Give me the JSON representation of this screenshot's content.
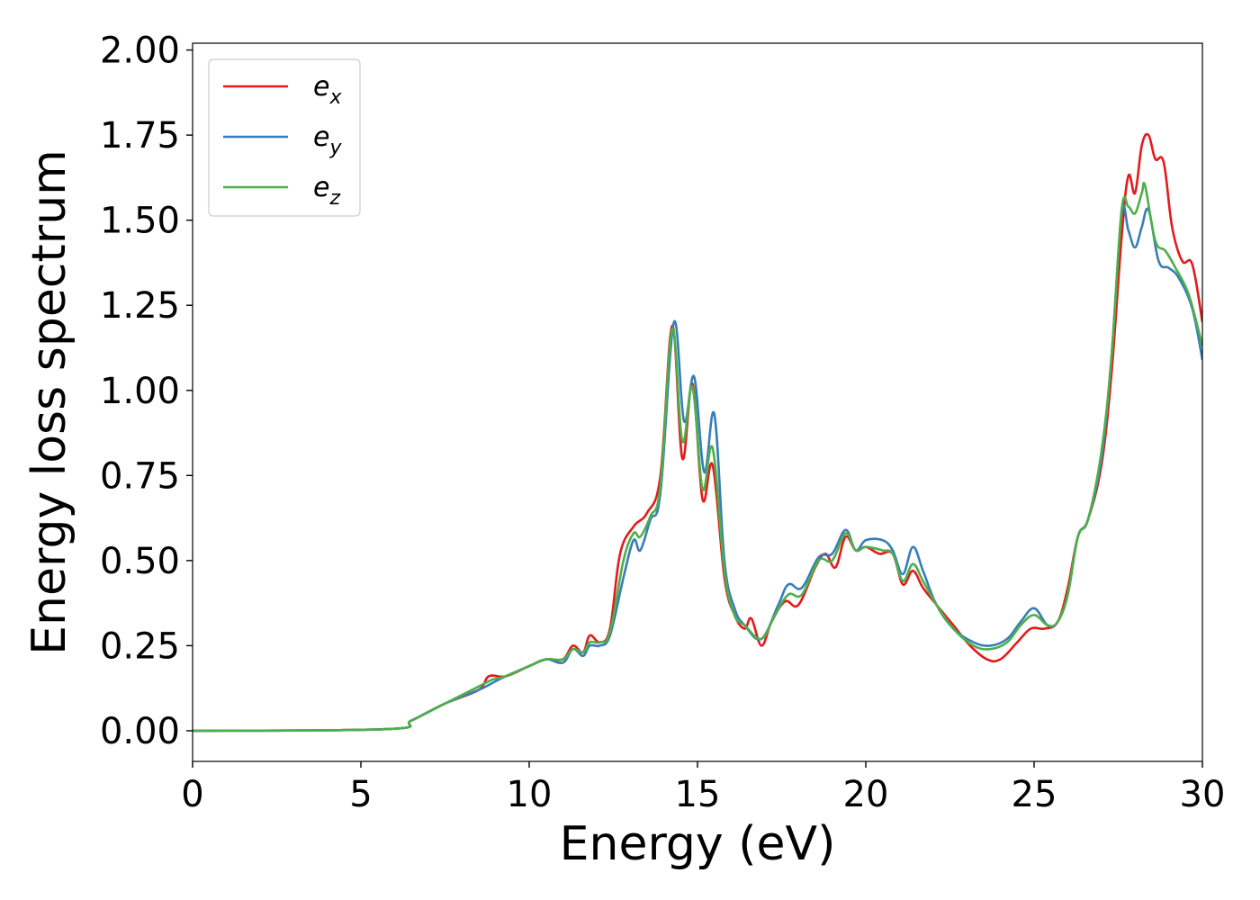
{
  "chart_data": {
    "type": "line",
    "xlabel": "Energy (eV)",
    "ylabel": "Energy loss spectrum",
    "xlim": [
      0,
      30
    ],
    "ylim": [
      -0.09,
      2.02
    ],
    "xticks": [
      0,
      5,
      10,
      15,
      20,
      25,
      30
    ],
    "xtick_labels": [
      "0",
      "5",
      "10",
      "15",
      "20",
      "25",
      "30"
    ],
    "yticks": [
      0,
      0.25,
      0.5,
      0.75,
      1.0,
      1.25,
      1.5,
      1.75,
      2.0
    ],
    "ytick_labels": [
      "0.00",
      "0.25",
      "0.50",
      "0.75",
      "1.00",
      "1.25",
      "1.50",
      "1.75",
      "2.00"
    ],
    "grid": false,
    "legend_position": "top-left",
    "series": [
      {
        "name_base": "e",
        "name_sub": "x",
        "color": "#e41a1c",
        "points": [
          [
            0,
            0
          ],
          [
            5.8,
            0.005
          ],
          [
            6.5,
            0.03
          ],
          [
            7.5,
            0.08
          ],
          [
            8.5,
            0.12
          ],
          [
            8.8,
            0.16
          ],
          [
            9.3,
            0.16
          ],
          [
            10,
            0.19
          ],
          [
            10.5,
            0.21
          ],
          [
            11,
            0.21
          ],
          [
            11.3,
            0.25
          ],
          [
            11.6,
            0.23
          ],
          [
            11.8,
            0.28
          ],
          [
            12.1,
            0.26
          ],
          [
            12.4,
            0.3
          ],
          [
            12.7,
            0.52
          ],
          [
            13.1,
            0.6
          ],
          [
            13.5,
            0.64
          ],
          [
            13.9,
            0.75
          ],
          [
            14.25,
            1.19
          ],
          [
            14.55,
            0.8
          ],
          [
            14.85,
            1.02
          ],
          [
            15.15,
            0.68
          ],
          [
            15.45,
            0.78
          ],
          [
            15.8,
            0.45
          ],
          [
            16.1,
            0.34
          ],
          [
            16.4,
            0.3
          ],
          [
            16.6,
            0.33
          ],
          [
            16.9,
            0.25
          ],
          [
            17.2,
            0.32
          ],
          [
            17.6,
            0.38
          ],
          [
            18.0,
            0.37
          ],
          [
            18.5,
            0.48
          ],
          [
            18.8,
            0.52
          ],
          [
            19.1,
            0.48
          ],
          [
            19.4,
            0.57
          ],
          [
            19.7,
            0.53
          ],
          [
            20.0,
            0.54
          ],
          [
            20.4,
            0.52
          ],
          [
            20.8,
            0.52
          ],
          [
            21.1,
            0.43
          ],
          [
            21.4,
            0.47
          ],
          [
            21.7,
            0.42
          ],
          [
            22.1,
            0.37
          ],
          [
            22.6,
            0.31
          ],
          [
            23.1,
            0.25
          ],
          [
            23.6,
            0.21
          ],
          [
            24.0,
            0.21
          ],
          [
            24.5,
            0.26
          ],
          [
            24.9,
            0.3
          ],
          [
            25.3,
            0.3
          ],
          [
            25.7,
            0.32
          ],
          [
            26.0,
            0.42
          ],
          [
            26.3,
            0.57
          ],
          [
            26.6,
            0.62
          ],
          [
            27.0,
            0.78
          ],
          [
            27.3,
            1.05
          ],
          [
            27.6,
            1.45
          ],
          [
            27.8,
            1.63
          ],
          [
            28.0,
            1.58
          ],
          [
            28.2,
            1.72
          ],
          [
            28.4,
            1.75
          ],
          [
            28.6,
            1.68
          ],
          [
            28.85,
            1.67
          ],
          [
            29.1,
            1.48
          ],
          [
            29.4,
            1.38
          ],
          [
            29.7,
            1.37
          ],
          [
            30.0,
            1.2
          ]
        ]
      },
      {
        "name_base": "e",
        "name_sub": "y",
        "color": "#377eb8",
        "points": [
          [
            0,
            0
          ],
          [
            5.8,
            0.005
          ],
          [
            6.5,
            0.03
          ],
          [
            7.5,
            0.08
          ],
          [
            8.5,
            0.12
          ],
          [
            8.9,
            0.14
          ],
          [
            9.3,
            0.16
          ],
          [
            10,
            0.19
          ],
          [
            10.5,
            0.21
          ],
          [
            11,
            0.2
          ],
          [
            11.3,
            0.24
          ],
          [
            11.6,
            0.22
          ],
          [
            11.8,
            0.25
          ],
          [
            12.1,
            0.25
          ],
          [
            12.4,
            0.28
          ],
          [
            12.8,
            0.45
          ],
          [
            13.1,
            0.56
          ],
          [
            13.3,
            0.53
          ],
          [
            13.6,
            0.62
          ],
          [
            13.9,
            0.7
          ],
          [
            14.3,
            1.2
          ],
          [
            14.6,
            0.91
          ],
          [
            14.9,
            1.04
          ],
          [
            15.2,
            0.76
          ],
          [
            15.5,
            0.93
          ],
          [
            15.8,
            0.5
          ],
          [
            16.1,
            0.36
          ],
          [
            16.4,
            0.31
          ],
          [
            16.9,
            0.27
          ],
          [
            17.4,
            0.37
          ],
          [
            17.7,
            0.43
          ],
          [
            18.1,
            0.42
          ],
          [
            18.6,
            0.51
          ],
          [
            19.0,
            0.52
          ],
          [
            19.4,
            0.59
          ],
          [
            19.7,
            0.53
          ],
          [
            20.0,
            0.56
          ],
          [
            20.5,
            0.56
          ],
          [
            20.8,
            0.53
          ],
          [
            21.1,
            0.46
          ],
          [
            21.4,
            0.54
          ],
          [
            21.7,
            0.47
          ],
          [
            22.1,
            0.37
          ],
          [
            22.6,
            0.3
          ],
          [
            23.2,
            0.26
          ],
          [
            23.7,
            0.25
          ],
          [
            24.2,
            0.27
          ],
          [
            24.6,
            0.32
          ],
          [
            25.0,
            0.36
          ],
          [
            25.4,
            0.31
          ],
          [
            25.7,
            0.32
          ],
          [
            26.0,
            0.4
          ],
          [
            26.3,
            0.57
          ],
          [
            26.6,
            0.62
          ],
          [
            27.0,
            0.8
          ],
          [
            27.3,
            1.1
          ],
          [
            27.6,
            1.52
          ],
          [
            27.8,
            1.47
          ],
          [
            28.0,
            1.42
          ],
          [
            28.2,
            1.48
          ],
          [
            28.4,
            1.53
          ],
          [
            28.7,
            1.38
          ],
          [
            29.0,
            1.36
          ],
          [
            29.3,
            1.33
          ],
          [
            29.7,
            1.24
          ],
          [
            30.0,
            1.09
          ]
        ]
      },
      {
        "name_base": "e",
        "name_sub": "z",
        "color": "#4daf4a",
        "points": [
          [
            0,
            0
          ],
          [
            5.8,
            0.005
          ],
          [
            6.5,
            0.03
          ],
          [
            7.5,
            0.08
          ],
          [
            8.5,
            0.13
          ],
          [
            8.9,
            0.15
          ],
          [
            9.3,
            0.16
          ],
          [
            10,
            0.19
          ],
          [
            10.5,
            0.21
          ],
          [
            11,
            0.21
          ],
          [
            11.3,
            0.24
          ],
          [
            11.6,
            0.23
          ],
          [
            11.8,
            0.26
          ],
          [
            12.1,
            0.26
          ],
          [
            12.4,
            0.29
          ],
          [
            12.8,
            0.5
          ],
          [
            13.1,
            0.58
          ],
          [
            13.3,
            0.57
          ],
          [
            13.6,
            0.63
          ],
          [
            13.9,
            0.72
          ],
          [
            14.25,
            1.18
          ],
          [
            14.55,
            0.85
          ],
          [
            14.85,
            1.01
          ],
          [
            15.15,
            0.71
          ],
          [
            15.45,
            0.83
          ],
          [
            15.8,
            0.47
          ],
          [
            16.1,
            0.34
          ],
          [
            16.4,
            0.31
          ],
          [
            16.9,
            0.27
          ],
          [
            17.3,
            0.34
          ],
          [
            17.7,
            0.4
          ],
          [
            18.1,
            0.4
          ],
          [
            18.6,
            0.5
          ],
          [
            19.0,
            0.5
          ],
          [
            19.4,
            0.58
          ],
          [
            19.7,
            0.53
          ],
          [
            20.0,
            0.54
          ],
          [
            20.5,
            0.53
          ],
          [
            20.8,
            0.52
          ],
          [
            21.1,
            0.44
          ],
          [
            21.4,
            0.49
          ],
          [
            21.7,
            0.44
          ],
          [
            22.1,
            0.37
          ],
          [
            22.6,
            0.3
          ],
          [
            23.2,
            0.25
          ],
          [
            23.7,
            0.24
          ],
          [
            24.2,
            0.26
          ],
          [
            24.6,
            0.31
          ],
          [
            25.0,
            0.34
          ],
          [
            25.4,
            0.31
          ],
          [
            25.7,
            0.32
          ],
          [
            26.0,
            0.4
          ],
          [
            26.3,
            0.57
          ],
          [
            26.6,
            0.62
          ],
          [
            27.0,
            0.82
          ],
          [
            27.3,
            1.1
          ],
          [
            27.6,
            1.53
          ],
          [
            27.8,
            1.54
          ],
          [
            28.0,
            1.52
          ],
          [
            28.2,
            1.58
          ],
          [
            28.3,
            1.6
          ],
          [
            28.6,
            1.44
          ],
          [
            28.9,
            1.41
          ],
          [
            29.2,
            1.36
          ],
          [
            29.6,
            1.28
          ],
          [
            30.0,
            1.13
          ]
        ]
      }
    ]
  }
}
